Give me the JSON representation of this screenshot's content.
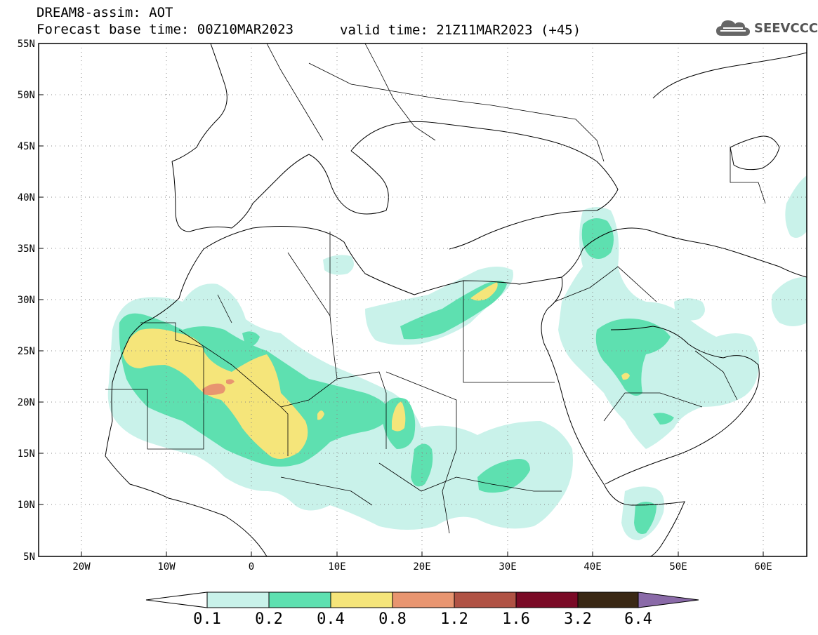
{
  "header": {
    "line1": "DREAM8-assim: AOT",
    "line2": "Forecast base time: 00Z10MAR2023",
    "valid": "valid time: 21Z11MAR2023 (+45)"
  },
  "logo": {
    "icon": "cloud-icon",
    "text": "SEEVCCC"
  },
  "map": {
    "lat_labels": [
      "55N",
      "50N",
      "45N",
      "40N",
      "35N",
      "30N",
      "25N",
      "20N",
      "15N",
      "10N",
      "5N"
    ],
    "lon_labels": [
      "20W",
      "10W",
      "0",
      "10E",
      "20E",
      "30E",
      "40E",
      "50E",
      "60E"
    ]
  },
  "colorbar": {
    "labels": [
      "0.1",
      "0.2",
      "0.4",
      "0.8",
      "1.2",
      "1.6",
      "3.2",
      "6.4"
    ],
    "colors": [
      "#ffffff",
      "#c9f2ea",
      "#5ee0b0",
      "#f5e57a",
      "#e89570",
      "#b05244",
      "#7a0a26",
      "#3a2814",
      "#8a6aa8"
    ]
  },
  "legend_colors": {
    "c1": "#c9f2ea",
    "c2": "#5ee0b0",
    "c3": "#f5e57a",
    "c4": "#e89570"
  }
}
